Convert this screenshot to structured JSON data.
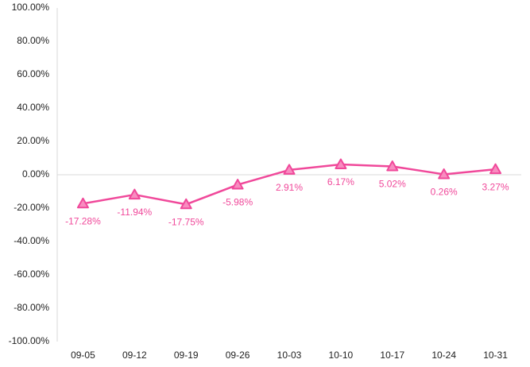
{
  "chart_data": {
    "type": "line",
    "title": "",
    "xlabel": "",
    "ylabel": "",
    "categories": [
      "09-05",
      "09-12",
      "09-19",
      "09-26",
      "10-03",
      "10-10",
      "10-17",
      "10-24",
      "10-31"
    ],
    "series": [
      {
        "values": [
          -17.28,
          -11.94,
          -17.75,
          -5.98,
          2.91,
          6.17,
          5.02,
          0.26,
          3.27
        ],
        "value_labels": [
          "-17.28%",
          "-11.94%",
          "-17.75%",
          "-5.98%",
          "2.91%",
          "6.17%",
          "5.02%",
          "0.26%",
          "3.27%"
        ],
        "color": "#f0489a",
        "marker_fill": "#f88cc0",
        "marker": "triangle"
      }
    ],
    "ylim": [
      -100,
      100
    ],
    "y_ticks": [
      100,
      80,
      60,
      40,
      20,
      0,
      -20,
      -40,
      -60,
      -80,
      -100
    ],
    "y_tick_labels": [
      "100.00%",
      "80.00%",
      "60.00%",
      "40.00%",
      "20.00%",
      "0.00%",
      "-20.00%",
      "-40.00%",
      "-60.00%",
      "-80.00%",
      "-100.00%"
    ],
    "grid": false,
    "legend": "none",
    "axis_color": "#d9d9d9",
    "label_color": "#222222"
  }
}
